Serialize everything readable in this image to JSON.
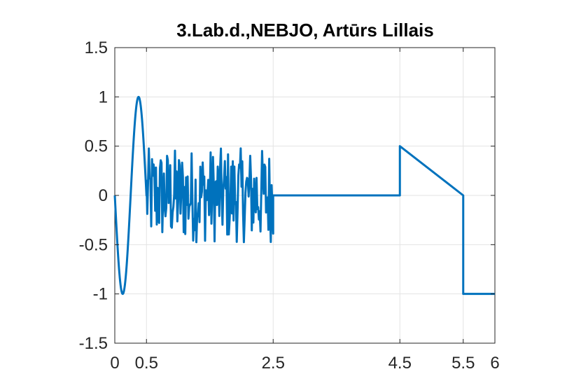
{
  "chart_data": {
    "type": "line",
    "title": "3.Lab.d.,NEBJO, Artūrs Lillais",
    "xlabel": "",
    "ylabel": "",
    "xlim": [
      0,
      6
    ],
    "ylim": [
      -1.5,
      1.5
    ],
    "x_ticks": [
      0,
      0.5,
      2.5,
      4.5,
      5.5,
      6
    ],
    "x_tick_labels": [
      "0",
      "0.5",
      "2.5",
      "4.5",
      "5.5",
      "6"
    ],
    "y_ticks": [
      1.5,
      1,
      0.5,
      0,
      -0.5,
      -1,
      -1.5
    ],
    "y_tick_labels": [
      "1.5",
      "1",
      "0.5",
      "0",
      "-0.5",
      "-1",
      "-1.5"
    ],
    "grid": true,
    "line_color": "#0072BD",
    "series": [
      {
        "segments": [
          {
            "kind": "sine",
            "x_range": [
              0,
              0.5
            ],
            "amplitude": 1,
            "frequency": 2,
            "phase_sign": -1
          },
          {
            "kind": "random_noise",
            "x_range": [
              0.5,
              2.5
            ],
            "y_range": [
              -0.48,
              0.48
            ],
            "approx_points": 160
          },
          {
            "kind": "line",
            "x": [
              2.5,
              4.5,
              4.5,
              5.5,
              5.5,
              6
            ],
            "y": [
              0,
              0,
              0.5,
              0,
              -1,
              -1
            ]
          }
        ]
      }
    ]
  }
}
